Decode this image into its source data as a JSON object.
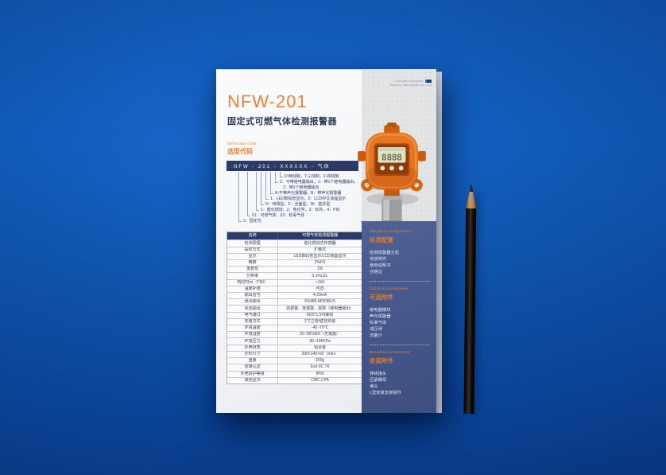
{
  "colors": {
    "background_blue": "#0f57b2",
    "accent_orange": "#e8833a",
    "navy": "#2b3a68",
    "sidebar_blue": "#46588b"
  },
  "brand": {
    "name_line1": "Chengdu Southern",
    "name_line2": "Electric Instrument Co.,Ltd"
  },
  "header": {
    "model": "NFW-201",
    "product_name": "固定式可燃气体检测报警器"
  },
  "selection": {
    "label_en": "Selection code",
    "label_zh": "选型代码",
    "code_bar": "NFW - 201 - XXXXXX - 气体",
    "options": [
      "D:两线制，T:三线制，F:四线制",
      "0：不带继电器输出，1：带1个继电器输出，",
      "2：带2个继电器输出",
      "N:不带声光报警器，B：带声光报警器",
      "1：LED数码管显示，2：LCD中文液晶显示",
      "H：特殊型，F：全面型，W：基本型",
      "1：催化燃烧，2：电化学，3：红外，4：PID",
      "01：可燃气体，02：有毒气体",
      "2：固定式"
    ]
  },
  "device": {
    "display_digits": "8888"
  },
  "spec_table": {
    "header": [
      "名称",
      "可燃气体检测报警器"
    ],
    "rows": [
      [
        "检测原理",
        "催化燃烧式传感器"
      ],
      [
        "采样方式",
        "扩散式"
      ],
      [
        "显示",
        "LED数码管显示/LCD液晶显示"
      ],
      [
        "精度",
        "2%FS"
      ],
      [
        "重复性",
        "1%"
      ],
      [
        "分辨率",
        "0.1%LEL"
      ],
      [
        "响应时间（T90）",
        "<15S"
      ],
      [
        "温度补偿",
        "可选"
      ],
      [
        "输出信号",
        "4-20mA"
      ],
      [
        "通讯输出",
        "RS485 MODBUS"
      ],
      [
        "状态输出",
        "高报警、低报警、故障（继电器输出）"
      ],
      [
        "电气接口",
        "M20*1.5内螺纹"
      ],
      [
        "安装方式",
        "2寸立管/壁挂安装"
      ],
      [
        "环境温度",
        "-40~70℃"
      ],
      [
        "环境湿度",
        "20~95%RH（无凝露）"
      ],
      [
        "环境压力",
        "86~106KPa"
      ],
      [
        "外壳材质",
        "铝合金"
      ],
      [
        "外形尺寸",
        "200×140×92（mm）"
      ],
      [
        "重量",
        "250g"
      ],
      [
        "防爆认证",
        "Exd IIC T6"
      ],
      [
        "外壳防护等级",
        "IP65"
      ],
      [
        "其他证书",
        "CMC,CPA"
      ]
    ]
  },
  "sidebar": {
    "sections": [
      {
        "title_en": "Standard configuration",
        "title_zh": "标准配置",
        "items": [
          "检测报警器主机",
          "安装附件",
          "使用说明书",
          "合格证"
        ]
      },
      {
        "title_en": "Optional accessories",
        "title_zh": "可选附件",
        "items": [
          "继电器模块",
          "声光报警器",
          "标准气体",
          "减压阀",
          "流量计"
        ]
      },
      {
        "title_en": "Mounting accessories",
        "title_zh": "安装附件",
        "items": [
          "穿线接头",
          "压紧螺母",
          "堵头",
          "L型安装支架组件"
        ]
      }
    ]
  }
}
